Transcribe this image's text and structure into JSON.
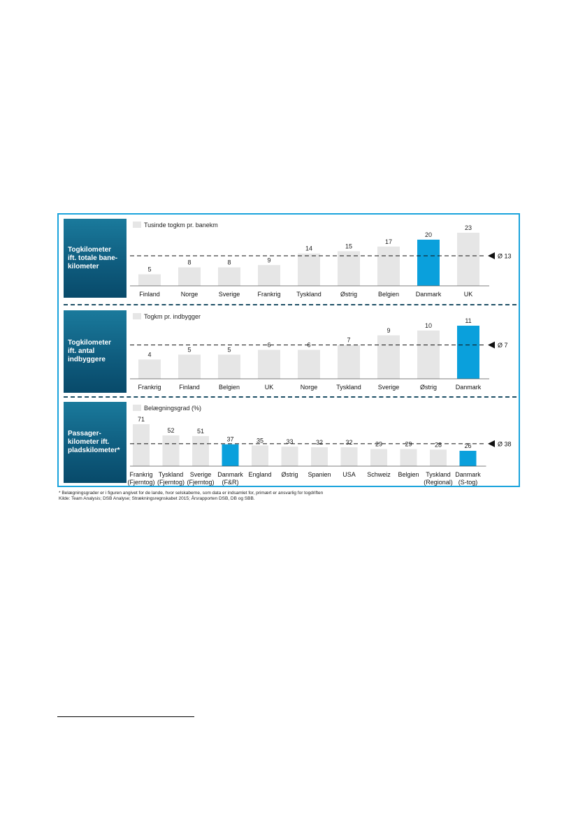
{
  "panels": [
    {
      "side_label": "Togkilometer\nift. totale bane-\nkilometer",
      "legend": "Tusinde togkm pr. banekm",
      "avg_label": "Ø 13",
      "chart_data": {
        "type": "bar",
        "categories": [
          "Finland",
          "Norge",
          "Sverige",
          "Frankrig",
          "Tyskland",
          "Østrig",
          "Belgien",
          "Danmark",
          "UK"
        ],
        "values": [
          5,
          8,
          8,
          9,
          14,
          15,
          17,
          20,
          23
        ],
        "highlight": [
          "Danmark"
        ],
        "average": 13,
        "ylim": [
          0,
          23
        ],
        "grid": false,
        "legend_placement": "top-left",
        "colors": {
          "bar": "#e6e6e6",
          "highlight": "#0aa0dc"
        }
      }
    },
    {
      "side_label": "Togkilometer\nift. antal\nindbyggere",
      "legend": "Togkm pr. indbygger",
      "avg_label": "Ø 7",
      "chart_data": {
        "type": "bar",
        "categories": [
          "Frankrig",
          "Finland",
          "Belgien",
          "UK",
          "Norge",
          "Tyskland",
          "Sverige",
          "Østrig",
          "Danmark"
        ],
        "values": [
          4,
          5,
          5,
          6,
          6,
          7,
          9,
          10,
          11
        ],
        "highlight": [
          "Danmark"
        ],
        "average": 7,
        "ylim": [
          0,
          11
        ],
        "grid": false,
        "legend_placement": "top-left",
        "colors": {
          "bar": "#e6e6e6",
          "highlight": "#0aa0dc"
        }
      }
    },
    {
      "side_label": "Passager-\nkilometer ift.\npladskilometer*",
      "legend": "Belægningsgrad (%)",
      "avg_label": "Ø 38",
      "chart_data": {
        "type": "bar",
        "categories": [
          [
            "Frankrig",
            "(Fjerntog)"
          ],
          [
            "Tyskland",
            "(Fjerntog)"
          ],
          [
            "Sverige",
            "(Fjerntog)"
          ],
          [
            "Danmark",
            "(F&R)"
          ],
          [
            "England"
          ],
          [
            "Østrig"
          ],
          [
            "Spanien"
          ],
          [
            "USA"
          ],
          [
            "Schweiz"
          ],
          [
            "Belgien"
          ],
          [
            "Tyskland",
            "(Regional)"
          ],
          [
            "Danmark",
            "(S-tog)"
          ]
        ],
        "values": [
          71,
          52,
          51,
          37,
          35,
          33,
          32,
          32,
          29,
          29,
          28,
          26
        ],
        "highlight_index": [
          3,
          11
        ],
        "average": 38,
        "ylim": [
          0,
          71
        ],
        "grid": false,
        "legend_placement": "top-left",
        "colors": {
          "bar": "#e6e6e6",
          "highlight": "#0aa0dc"
        }
      }
    }
  ],
  "footnotes": {
    "note": "* Belægningsgrader er i figuren angivet for de lande, hvor selskaberne, som data er indsamlet for, primært er ansvarlig for togdriften",
    "source": "Kilde: Team Analysis; DSB Analyse; Strækningsregnskabet 2015; Årsrapporten DSB, DB og SBB."
  }
}
